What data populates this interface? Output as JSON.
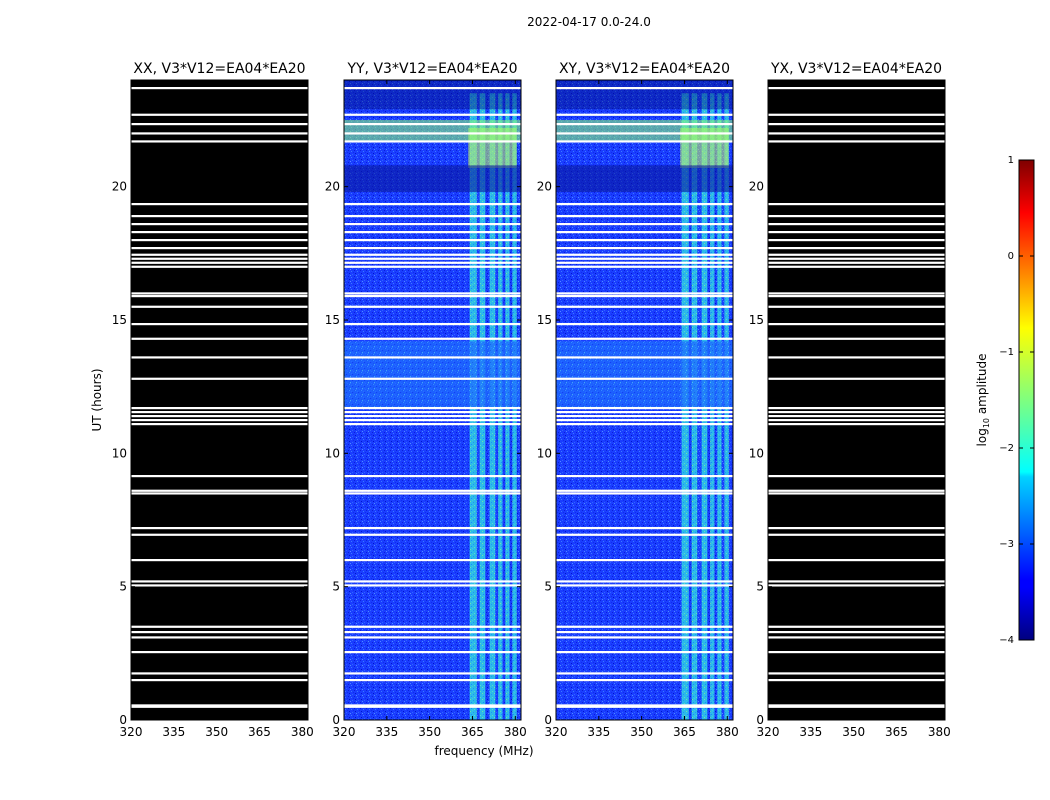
{
  "figure": {
    "title": "2022-04-17 0.0-24.0",
    "xlabel": "frequency (MHz)",
    "ylabel": "UT (hours)"
  },
  "chart_data": {
    "type": "heatmap",
    "title": "2022-04-17 0.0-24.0",
    "xlabel": "frequency (MHz)",
    "ylabel": "UT (hours)",
    "xlim": [
      320,
      382
    ],
    "ylim": [
      0,
      24
    ],
    "x_ticks": [
      320,
      335,
      350,
      365,
      380
    ],
    "y_ticks": [
      0,
      5,
      10,
      15,
      20
    ],
    "panels": [
      {
        "title": "XX, V3*V12=EA04*EA20",
        "content": "masked"
      },
      {
        "title": "YY, V3*V12=EA04*EA20",
        "content": "data"
      },
      {
        "title": "XY, V3*V12=EA04*EA20",
        "content": "data"
      },
      {
        "title": "YX, V3*V12=EA04*EA20",
        "content": "masked"
      }
    ],
    "gap_rows_hours": [
      0.5,
      0.55,
      1.5,
      1.75,
      2.55,
      3.1,
      3.3,
      3.5,
      5.05,
      5.2,
      6.0,
      6.95,
      7.2,
      8.5,
      8.6,
      9.15,
      11.1,
      11.25,
      11.4,
      11.55,
      11.7,
      12.8,
      13.6,
      14.3,
      14.85,
      15.5,
      15.9,
      16.0,
      17.0,
      17.15,
      17.3,
      17.45,
      17.7,
      18.0,
      18.3,
      18.6,
      18.9,
      19.35,
      21.7,
      22.0,
      22.35,
      22.7,
      23.7
    ],
    "rfi_bands_mhz": [
      [
        364,
        366.5
      ],
      [
        367.5,
        369.5
      ],
      [
        371,
        373
      ],
      [
        374,
        375.5
      ],
      [
        376.5,
        378
      ],
      [
        379,
        380.5
      ]
    ],
    "colorbar": {
      "label": "log10 amplitude",
      "label_main": "log",
      "label_sub": "10",
      "label_tail": " amplitude",
      "range": [
        -4,
        1
      ],
      "ticks": [
        "1",
        "0",
        "−1",
        "−2",
        "−3",
        "−4"
      ],
      "tick_values": [
        1,
        0,
        -1,
        -2,
        -3,
        -4
      ],
      "colormap": "jet"
    }
  }
}
